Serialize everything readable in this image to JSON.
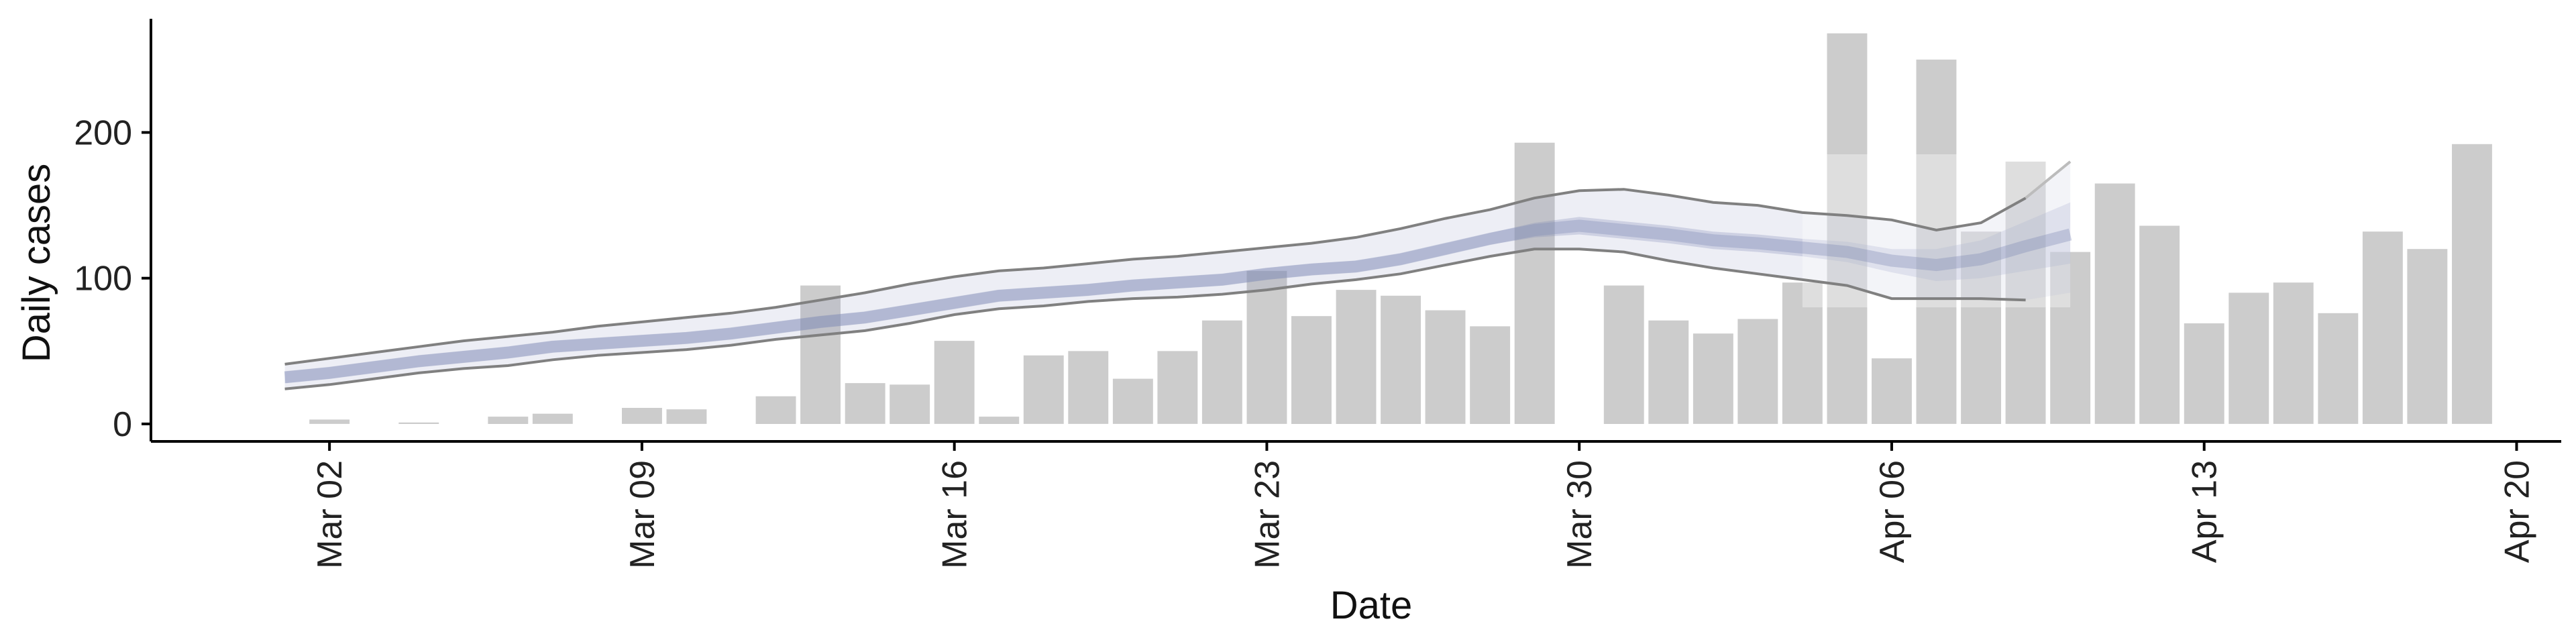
{
  "chart_data": {
    "type": "bar",
    "title": "",
    "xlabel": "Date",
    "ylabel": "Daily cases",
    "start_date": "2020-03-02",
    "xlim": [
      "2020-02-27",
      "2020-04-21"
    ],
    "ylim": [
      -12,
      278
    ],
    "grid": false,
    "legend": "none",
    "x_ticks": [
      {
        "date": "2020-03-02",
        "label": "Mar 02"
      },
      {
        "date": "2020-03-09",
        "label": "Mar 09"
      },
      {
        "date": "2020-03-16",
        "label": "Mar 16"
      },
      {
        "date": "2020-03-23",
        "label": "Mar 23"
      },
      {
        "date": "2020-03-30",
        "label": "Mar 30"
      },
      {
        "date": "2020-04-06",
        "label": "Apr 06"
      },
      {
        "date": "2020-04-13",
        "label": "Apr 13"
      },
      {
        "date": "2020-04-20",
        "label": "Apr 20"
      }
    ],
    "y_ticks": [
      0,
      100,
      200
    ],
    "bars": {
      "color": "#cccccc",
      "dates": [
        "2020-03-02",
        "2020-03-03",
        "2020-03-04",
        "2020-03-05",
        "2020-03-06",
        "2020-03-07",
        "2020-03-08",
        "2020-03-09",
        "2020-03-10",
        "2020-03-11",
        "2020-03-12",
        "2020-03-13",
        "2020-03-14",
        "2020-03-15",
        "2020-03-16",
        "2020-03-17",
        "2020-03-18",
        "2020-03-19",
        "2020-03-20",
        "2020-03-21",
        "2020-03-22",
        "2020-03-23",
        "2020-03-24",
        "2020-03-25",
        "2020-03-26",
        "2020-03-27",
        "2020-03-28",
        "2020-03-29",
        "2020-03-30",
        "2020-03-31",
        "2020-04-01",
        "2020-04-02",
        "2020-04-03",
        "2020-04-04",
        "2020-04-05",
        "2020-04-06",
        "2020-04-07",
        "2020-04-08",
        "2020-04-09",
        "2020-04-10",
        "2020-04-11",
        "2020-04-12",
        "2020-04-13",
        "2020-04-14",
        "2020-04-15",
        "2020-04-16",
        "2020-04-17",
        "2020-04-18",
        "2020-04-19"
      ],
      "values": [
        3,
        0,
        1,
        0,
        5,
        7,
        0,
        11,
        10,
        0,
        19,
        95,
        28,
        27,
        57,
        5,
        47,
        50,
        31,
        50,
        71,
        105,
        74,
        92,
        88,
        78,
        67,
        193,
        0,
        95,
        71,
        62,
        72,
        97,
        268,
        45,
        250,
        132,
        180,
        118,
        165,
        136,
        69,
        90,
        97,
        76,
        132,
        120,
        192
      ]
    },
    "fit": {
      "color": "#7e89b5",
      "dates": [
        "2020-03-01",
        "2020-03-02",
        "2020-03-03",
        "2020-03-04",
        "2020-03-05",
        "2020-03-06",
        "2020-03-07",
        "2020-03-08",
        "2020-03-09",
        "2020-03-10",
        "2020-03-11",
        "2020-03-12",
        "2020-03-13",
        "2020-03-14",
        "2020-03-15",
        "2020-03-16",
        "2020-03-17",
        "2020-03-18",
        "2020-03-19",
        "2020-03-20",
        "2020-03-21",
        "2020-03-22",
        "2020-03-23",
        "2020-03-24",
        "2020-03-25",
        "2020-03-26",
        "2020-03-27",
        "2020-03-28",
        "2020-03-29",
        "2020-03-30",
        "2020-03-31",
        "2020-04-01",
        "2020-04-02",
        "2020-04-03",
        "2020-04-04",
        "2020-04-05",
        "2020-04-06",
        "2020-04-07",
        "2020-04-08",
        "2020-04-09",
        "2020-04-10"
      ],
      "median": [
        32,
        35,
        39,
        43,
        46,
        49,
        53,
        55,
        57,
        59,
        62,
        66,
        70,
        73,
        78,
        83,
        88,
        90,
        92,
        95,
        97,
        99,
        103,
        106,
        108,
        113,
        120,
        127,
        133,
        136,
        133,
        130,
        126,
        124,
        121,
        118,
        112,
        109,
        113,
        122,
        130
      ],
      "inner_lower": [
        28,
        31,
        35,
        39,
        42,
        45,
        49,
        51,
        53,
        55,
        58,
        62,
        66,
        69,
        74,
        79,
        84,
        86,
        88,
        91,
        93,
        95,
        99,
        102,
        104,
        109,
        116,
        123,
        128,
        130,
        127,
        124,
        120,
        118,
        115,
        111,
        104,
        98,
        100,
        105,
        110
      ],
      "inner_upper": [
        36,
        39,
        43,
        47,
        50,
        53,
        57,
        59,
        61,
        63,
        66,
        70,
        74,
        77,
        82,
        87,
        92,
        94,
        96,
        99,
        101,
        103,
        107,
        110,
        112,
        117,
        124,
        131,
        138,
        142,
        139,
        136,
        132,
        130,
        127,
        125,
        120,
        120,
        126,
        139,
        152
      ],
      "outer_lower": [
        24,
        27,
        31,
        35,
        38,
        40,
        44,
        47,
        49,
        51,
        54,
        58,
        61,
        64,
        69,
        75,
        79,
        81,
        84,
        86,
        87,
        89,
        92,
        96,
        99,
        103,
        109,
        115,
        120,
        120,
        118,
        112,
        107,
        103,
        99,
        95,
        86,
        86,
        86,
        85,
        90
      ],
      "outer_upper": [
        41,
        45,
        49,
        53,
        57,
        60,
        63,
        67,
        70,
        73,
        76,
        80,
        85,
        90,
        96,
        101,
        105,
        107,
        110,
        113,
        115,
        118,
        121,
        124,
        128,
        134,
        141,
        147,
        155,
        160,
        161,
        157,
        152,
        150,
        145,
        143,
        140,
        133,
        138,
        155,
        180
      ],
      "dark_extent_dates": [
        "2020-03-01",
        "2020-04-09"
      ],
      "highlight_dates": [
        "2020-04-04",
        "2020-04-10"
      ],
      "outer_line_color": "#808080"
    }
  }
}
